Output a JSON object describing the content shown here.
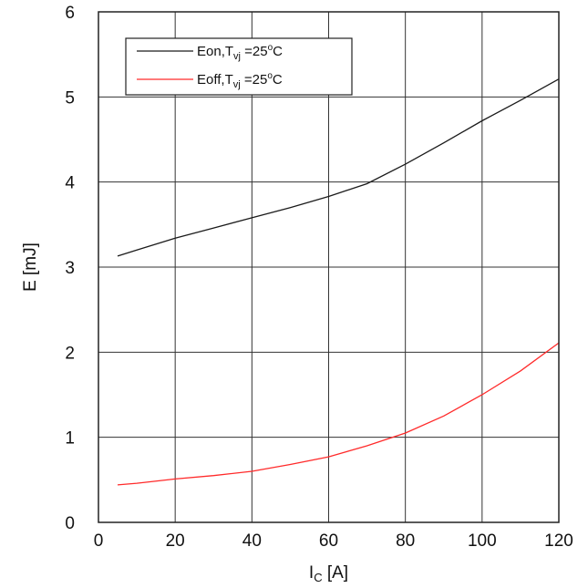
{
  "chart_data": {
    "type": "line",
    "title": "",
    "xlabel": {
      "main": "I",
      "sub": "C",
      "unit": " [A]"
    },
    "ylabel": "E [mJ]",
    "xlim": [
      0,
      120
    ],
    "ylim": [
      0,
      6
    ],
    "xticks": [
      0,
      20,
      40,
      60,
      80,
      100,
      120
    ],
    "yticks": [
      0,
      1,
      2,
      3,
      4,
      5,
      6
    ],
    "grid": true,
    "legend_position": "top-left",
    "series": [
      {
        "name": "Eon,Tvj =25oC",
        "legend": {
          "base": "Eon,T",
          "sub": "vj",
          "mid": " =25",
          "sup": "o",
          "end": "C"
        },
        "color": "#1a1a1a",
        "x": [
          5,
          10,
          20,
          30,
          40,
          50,
          60,
          70,
          80,
          90,
          100,
          110,
          120
        ],
        "y": [
          3.13,
          3.2,
          3.34,
          3.46,
          3.58,
          3.7,
          3.83,
          3.98,
          4.21,
          4.46,
          4.72,
          4.96,
          5.21
        ]
      },
      {
        "name": "Eoff,Tvj =25oC",
        "legend": {
          "base": "Eoff,T",
          "sub": "vj",
          "mid": " =25",
          "sup": "o",
          "end": "C"
        },
        "color": "#ff2a2a",
        "x": [
          5,
          10,
          20,
          30,
          40,
          50,
          60,
          70,
          80,
          90,
          100,
          110,
          120
        ],
        "y": [
          0.44,
          0.46,
          0.51,
          0.55,
          0.6,
          0.68,
          0.77,
          0.9,
          1.05,
          1.25,
          1.5,
          1.78,
          2.11
        ]
      }
    ]
  }
}
